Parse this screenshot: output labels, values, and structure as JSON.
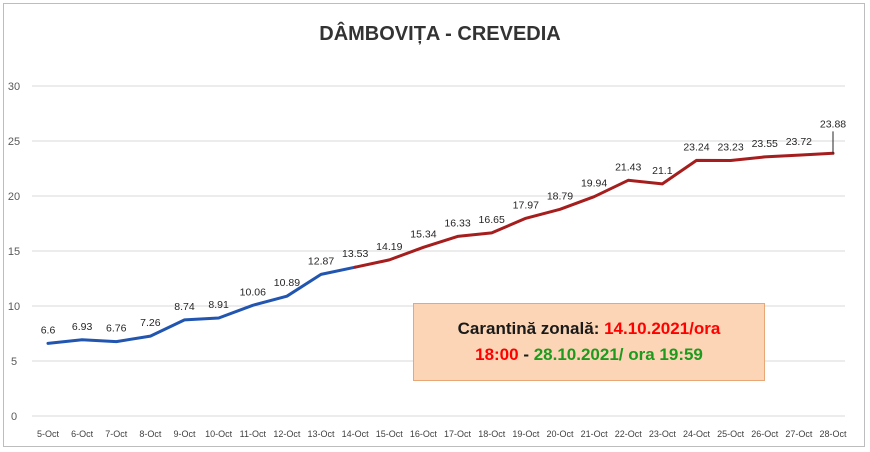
{
  "chart_data": {
    "type": "line",
    "title": "DÂMBOVIȚA - CREVEDIA",
    "xlabel": "",
    "ylabel": "",
    "ylim": [
      0,
      30
    ],
    "yticks": [
      0,
      5,
      10,
      15,
      20,
      25,
      30
    ],
    "grid": true,
    "legend": "none",
    "categories": [
      "5-Oct",
      "6-Oct",
      "7-Oct",
      "8-Oct",
      "9-Oct",
      "10-Oct",
      "11-Oct",
      "12-Oct",
      "13-Oct",
      "14-Oct",
      "15-Oct",
      "16-Oct",
      "17-Oct",
      "18-Oct",
      "19-Oct",
      "20-Oct",
      "21-Oct",
      "22-Oct",
      "23-Oct",
      "24-Oct",
      "25-Oct",
      "26-Oct",
      "27-Oct",
      "28-Oct"
    ],
    "values": [
      6.6,
      6.93,
      6.76,
      7.26,
      8.74,
      8.91,
      10.06,
      10.89,
      12.87,
      13.53,
      14.19,
      15.34,
      16.33,
      16.65,
      17.97,
      18.79,
      19.94,
      21.43,
      21.1,
      23.24,
      23.23,
      23.55,
      23.72,
      23.88
    ],
    "data_labels": [
      "6.6",
      "6.93",
      "6.76",
      "7.26",
      "8.74",
      "8.91",
      "10.06",
      "10.89",
      "12.87",
      "13.53",
      "14.19",
      "15.34",
      "16.33",
      "16.65",
      "17.97",
      "18.79",
      "19.94",
      "21.43",
      "21.1",
      "23.24",
      "23.23",
      "23.55",
      "23.72",
      "23.88"
    ],
    "segments": [
      {
        "from": "5-Oct",
        "to": "14-Oct",
        "color": "#2155b0"
      },
      {
        "from": "14-Oct",
        "to": "28-Oct",
        "color": "#a51d1d"
      }
    ]
  },
  "annotation": {
    "part1": "Carantină zonală",
    "sep1": ": ",
    "part2": "14.10.2021/ora",
    "part3": "18:00",
    "sep2": " - ",
    "part4": "28.10.2021/ ora 19:59"
  }
}
